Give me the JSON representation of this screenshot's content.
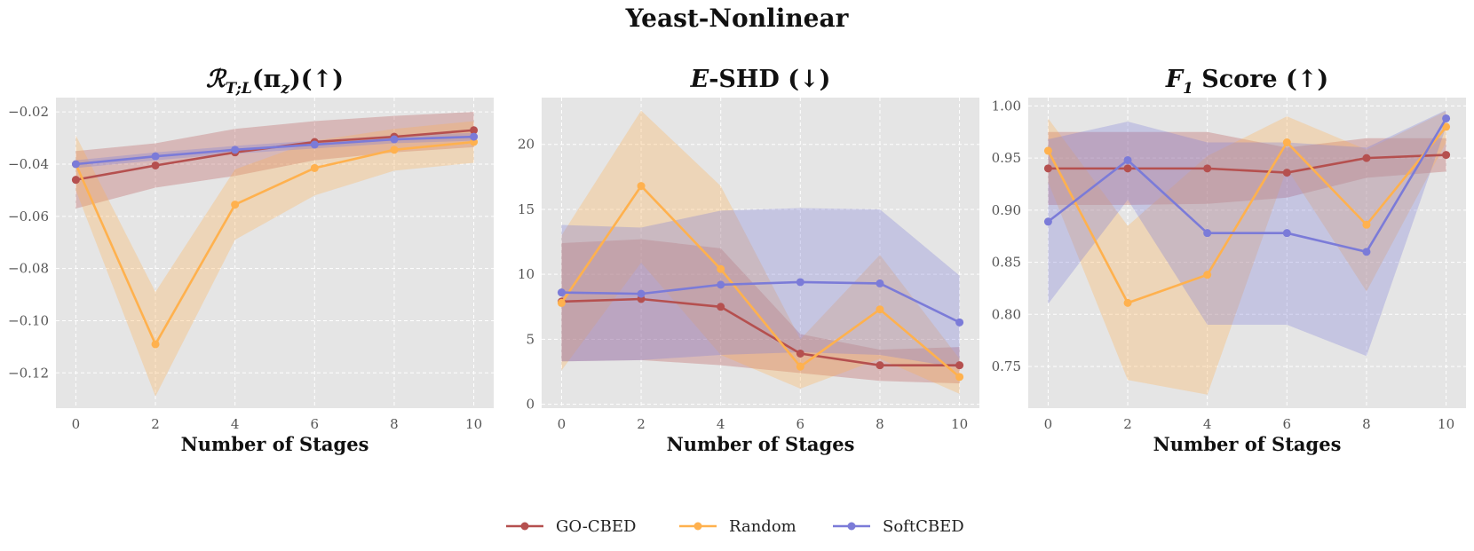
{
  "figure_title": "Yeast-Nonlinear",
  "legend": [
    {
      "name": "GO-CBED",
      "color": "#b5504f"
    },
    {
      "name": "Random",
      "color": "#ffb14e"
    },
    {
      "name": "SoftCBED",
      "color": "#7b7bd8"
    }
  ],
  "chart_data": [
    {
      "type": "line",
      "title": "R_{T;L}(π_z)(↑)",
      "title_parts": {
        "main": "ℛ",
        "sub": "T;L",
        "rest": "(π",
        "sub2": "z",
        "tail": ")(↑)"
      },
      "xlabel": "Number of Stages",
      "ylabel": "",
      "x": [
        0,
        2,
        4,
        6,
        8,
        10
      ],
      "xlim": [
        -0.5,
        10.5
      ],
      "ylim": [
        -0.1335,
        -0.0145
      ],
      "yticks": [
        -0.12,
        -0.1,
        -0.08,
        -0.06,
        -0.04,
        -0.02
      ],
      "ytick_labels": [
        "−0.12",
        "−0.10",
        "−0.08",
        "−0.06",
        "−0.04",
        "−0.02"
      ],
      "xticks": [
        0,
        2,
        4,
        6,
        8,
        10
      ],
      "grid": true,
      "series": [
        {
          "name": "GO-CBED",
          "color": "#b5504f",
          "values": [
            -0.046,
            -0.0405,
            -0.0355,
            -0.0315,
            -0.0295,
            -0.027
          ],
          "lower": [
            -0.057,
            -0.049,
            -0.0445,
            -0.0385,
            -0.0355,
            -0.0335
          ],
          "upper": [
            -0.035,
            -0.032,
            -0.0265,
            -0.0235,
            -0.0215,
            -0.02
          ]
        },
        {
          "name": "Random",
          "color": "#ffb14e",
          "values": [
            -0.04,
            -0.109,
            -0.0555,
            -0.0415,
            -0.0345,
            -0.0315
          ],
          "lower": [
            -0.05,
            -0.129,
            -0.069,
            -0.052,
            -0.0425,
            -0.0395
          ],
          "upper": [
            -0.029,
            -0.089,
            -0.042,
            -0.031,
            -0.0265,
            -0.0235
          ]
        },
        {
          "name": "SoftCBED",
          "color": "#7b7bd8",
          "values": [
            -0.04,
            -0.037,
            -0.0345,
            -0.0325,
            -0.0305,
            -0.0295
          ],
          "lower": [
            -0.0415,
            -0.0385,
            -0.036,
            -0.034,
            -0.032,
            -0.031
          ],
          "upper": [
            -0.0385,
            -0.0355,
            -0.033,
            -0.031,
            -0.029,
            -0.028
          ]
        }
      ]
    },
    {
      "type": "line",
      "title": "E-SHD (↓)",
      "title_parts": {
        "main": "E",
        "rest": "-SHD (↓)"
      },
      "xlabel": "Number of Stages",
      "ylabel": "",
      "x": [
        0,
        2,
        4,
        6,
        8,
        10
      ],
      "xlim": [
        -0.5,
        10.5
      ],
      "ylim": [
        -0.3,
        23.6
      ],
      "yticks": [
        0,
        5,
        10,
        15,
        20
      ],
      "ytick_labels": [
        "0",
        "5",
        "10",
        "15",
        "20"
      ],
      "xticks": [
        0,
        2,
        4,
        6,
        8,
        10
      ],
      "grid": true,
      "series": [
        {
          "name": "GO-CBED",
          "color": "#b5504f",
          "values": [
            7.9,
            8.1,
            7.5,
            3.9,
            3.0,
            3.0
          ],
          "lower": [
            3.3,
            3.4,
            3.0,
            2.4,
            1.8,
            1.6
          ],
          "upper": [
            12.4,
            12.7,
            12.0,
            5.4,
            4.2,
            4.4
          ]
        },
        {
          "name": "Random",
          "color": "#ffb14e",
          "values": [
            7.8,
            16.8,
            10.4,
            2.9,
            7.3,
            2.1
          ],
          "lower": [
            2.6,
            10.9,
            3.8,
            1.2,
            3.5,
            0.8
          ],
          "upper": [
            13.0,
            22.6,
            16.8,
            5.0,
            11.5,
            3.5
          ]
        },
        {
          "name": "SoftCBED",
          "color": "#7b7bd8",
          "values": [
            8.6,
            8.5,
            9.2,
            9.4,
            9.3,
            6.3
          ],
          "lower": [
            3.3,
            3.4,
            3.8,
            4.0,
            3.8,
            2.8
          ],
          "upper": [
            13.8,
            13.6,
            14.9,
            15.1,
            15.0,
            9.9
          ]
        }
      ]
    },
    {
      "type": "line",
      "title": "F_1 Score (↑)",
      "title_parts": {
        "main": "F",
        "sub": "1",
        "rest": " Score (↑)"
      },
      "xlabel": "Number of Stages",
      "ylabel": "",
      "x": [
        0,
        2,
        4,
        6,
        8,
        10
      ],
      "xlim": [
        -0.5,
        10.5
      ],
      "ylim": [
        0.71,
        1.008
      ],
      "yticks": [
        0.75,
        0.8,
        0.85,
        0.9,
        0.95,
        1.0
      ],
      "ytick_labels": [
        "0.75",
        "0.80",
        "0.85",
        "0.90",
        "0.95",
        "1.00"
      ],
      "xticks": [
        0,
        2,
        4,
        6,
        8,
        10
      ],
      "grid": true,
      "series": [
        {
          "name": "GO-CBED",
          "color": "#b5504f",
          "values": [
            0.94,
            0.94,
            0.94,
            0.936,
            0.95,
            0.953
          ],
          "lower": [
            0.905,
            0.905,
            0.906,
            0.912,
            0.931,
            0.937
          ],
          "upper": [
            0.975,
            0.975,
            0.975,
            0.96,
            0.969,
            0.969
          ]
        },
        {
          "name": "Random",
          "color": "#ffb14e",
          "values": [
            0.957,
            0.811,
            0.838,
            0.965,
            0.886,
            0.98
          ],
          "lower": [
            0.927,
            0.737,
            0.723,
            0.94,
            0.822,
            0.965
          ],
          "upper": [
            0.988,
            0.885,
            0.952,
            0.99,
            0.958,
            0.995
          ]
        },
        {
          "name": "SoftCBED",
          "color": "#7b7bd8",
          "values": [
            0.889,
            0.948,
            0.878,
            0.878,
            0.86,
            0.988
          ],
          "lower": [
            0.81,
            0.91,
            0.79,
            0.79,
            0.76,
            0.98
          ],
          "upper": [
            0.968,
            0.985,
            0.965,
            0.965,
            0.96,
            0.996
          ]
        }
      ]
    }
  ]
}
